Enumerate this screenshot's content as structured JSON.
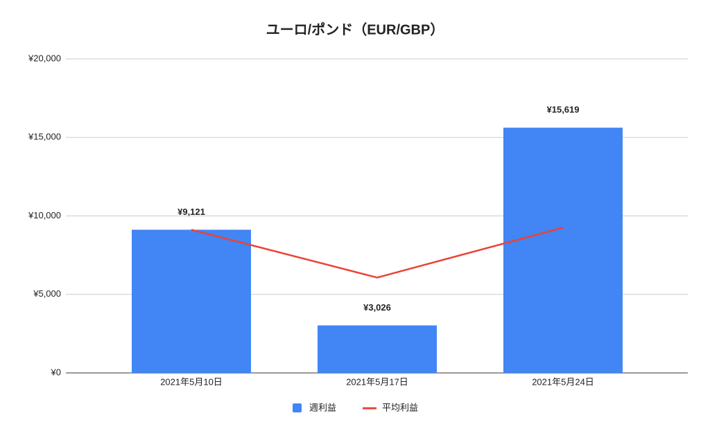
{
  "chart_data": {
    "type": "combo",
    "title": "ユーロ/ポンド（EUR/GBP）",
    "categories": [
      "2021年5月10日",
      "2021年5月17日",
      "2021年5月24日"
    ],
    "series": [
      {
        "name": "週利益",
        "type": "bar",
        "color": "#4285f4",
        "values": [
          9121,
          3026,
          15619
        ],
        "value_labels": [
          "¥9,121",
          "¥3,026",
          "¥15,619"
        ]
      },
      {
        "name": "平均利益",
        "type": "line",
        "color": "#ea4335",
        "values": [
          9121,
          6073.5,
          9255.33
        ]
      }
    ],
    "ylim": [
      0,
      20000
    ],
    "yticks": [
      {
        "value": 0,
        "label": "¥0"
      },
      {
        "value": 5000,
        "label": "¥5,000"
      },
      {
        "value": 10000,
        "label": "¥10,000"
      },
      {
        "value": 15000,
        "label": "¥15,000"
      },
      {
        "value": 20000,
        "label": "¥20,000"
      }
    ],
    "grid": true,
    "legend": "bottom"
  }
}
